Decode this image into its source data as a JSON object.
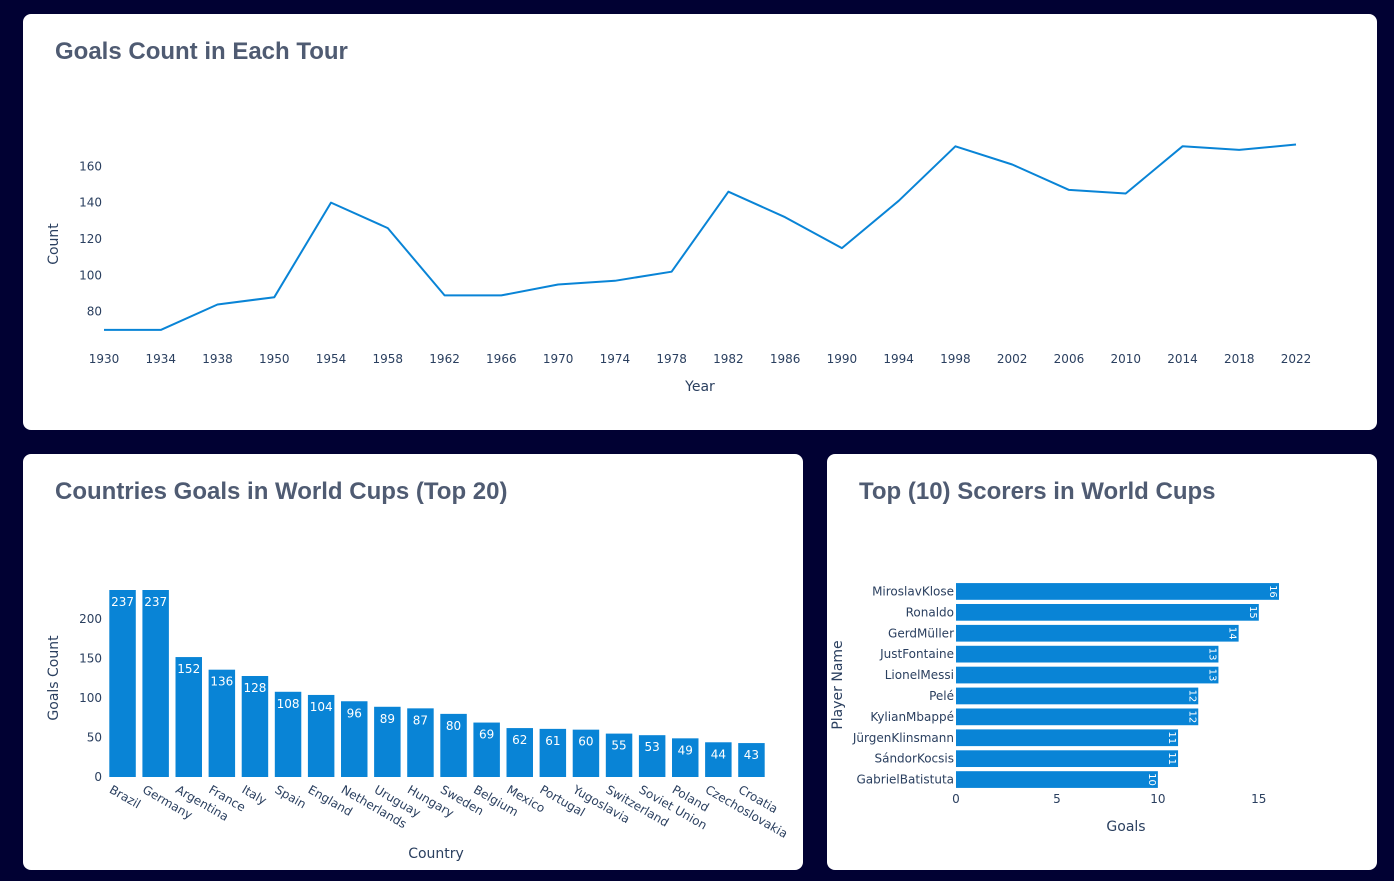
{
  "charts": {
    "line": {
      "title": "Goals Count in Each Tour",
      "chart_data": {
        "type": "line",
        "xlabel": "Year",
        "ylabel": "Count",
        "categories": [
          "1930",
          "1934",
          "1938",
          "1950",
          "1954",
          "1958",
          "1962",
          "1966",
          "1970",
          "1974",
          "1978",
          "1982",
          "1986",
          "1990",
          "1994",
          "1998",
          "2002",
          "2006",
          "2010",
          "2014",
          "2018",
          "2022"
        ],
        "values": [
          70,
          70,
          84,
          88,
          140,
          126,
          89,
          89,
          95,
          97,
          102,
          146,
          132,
          115,
          141,
          171,
          161,
          147,
          145,
          171,
          169,
          172
        ],
        "yticks": [
          80,
          100,
          120,
          140,
          160
        ],
        "ylim": [
          65,
          175
        ],
        "color": "#0984d6"
      }
    },
    "countries": {
      "title": "Countries Goals in World Cups (Top 20)",
      "chart_data": {
        "type": "bar",
        "xlabel": "Country",
        "ylabel": "Goals Count",
        "categories": [
          "Brazil",
          "Germany",
          "Argentina",
          "France",
          "Italy",
          "Spain",
          "England",
          "Netherlands",
          "Uruguay",
          "Hungary",
          "Sweden",
          "Belgium",
          "Mexico",
          "Portugal",
          "Yugoslavia",
          "Switzerland",
          "Soviet Union",
          "Poland",
          "Czechoslovakia",
          "Croatia"
        ],
        "values": [
          237,
          237,
          152,
          136,
          128,
          108,
          104,
          96,
          89,
          87,
          80,
          69,
          62,
          61,
          60,
          55,
          53,
          49,
          44,
          43
        ],
        "yticks": [
          0,
          50,
          100,
          150,
          200
        ],
        "ylim": [
          0,
          237
        ],
        "color": "#0984d6"
      }
    },
    "scorers": {
      "title": "Top (10) Scorers in World Cups",
      "chart_data": {
        "type": "bar",
        "orientation": "horizontal",
        "xlabel": "Goals",
        "ylabel": "Player Name",
        "categories": [
          "MiroslavKlose",
          "Ronaldo",
          "GerdMüller",
          "JustFontaine",
          "LionelMessi",
          "Pelé",
          "KylianMbappé",
          "JürgenKlinsmann",
          "SándorKocsis",
          "GabrielBatistuta"
        ],
        "values": [
          16,
          15,
          14,
          13,
          13,
          12,
          12,
          11,
          11,
          10
        ],
        "xticks": [
          0,
          5,
          10,
          15
        ],
        "xlim": [
          0,
          16
        ],
        "color": "#0984d6"
      }
    }
  }
}
